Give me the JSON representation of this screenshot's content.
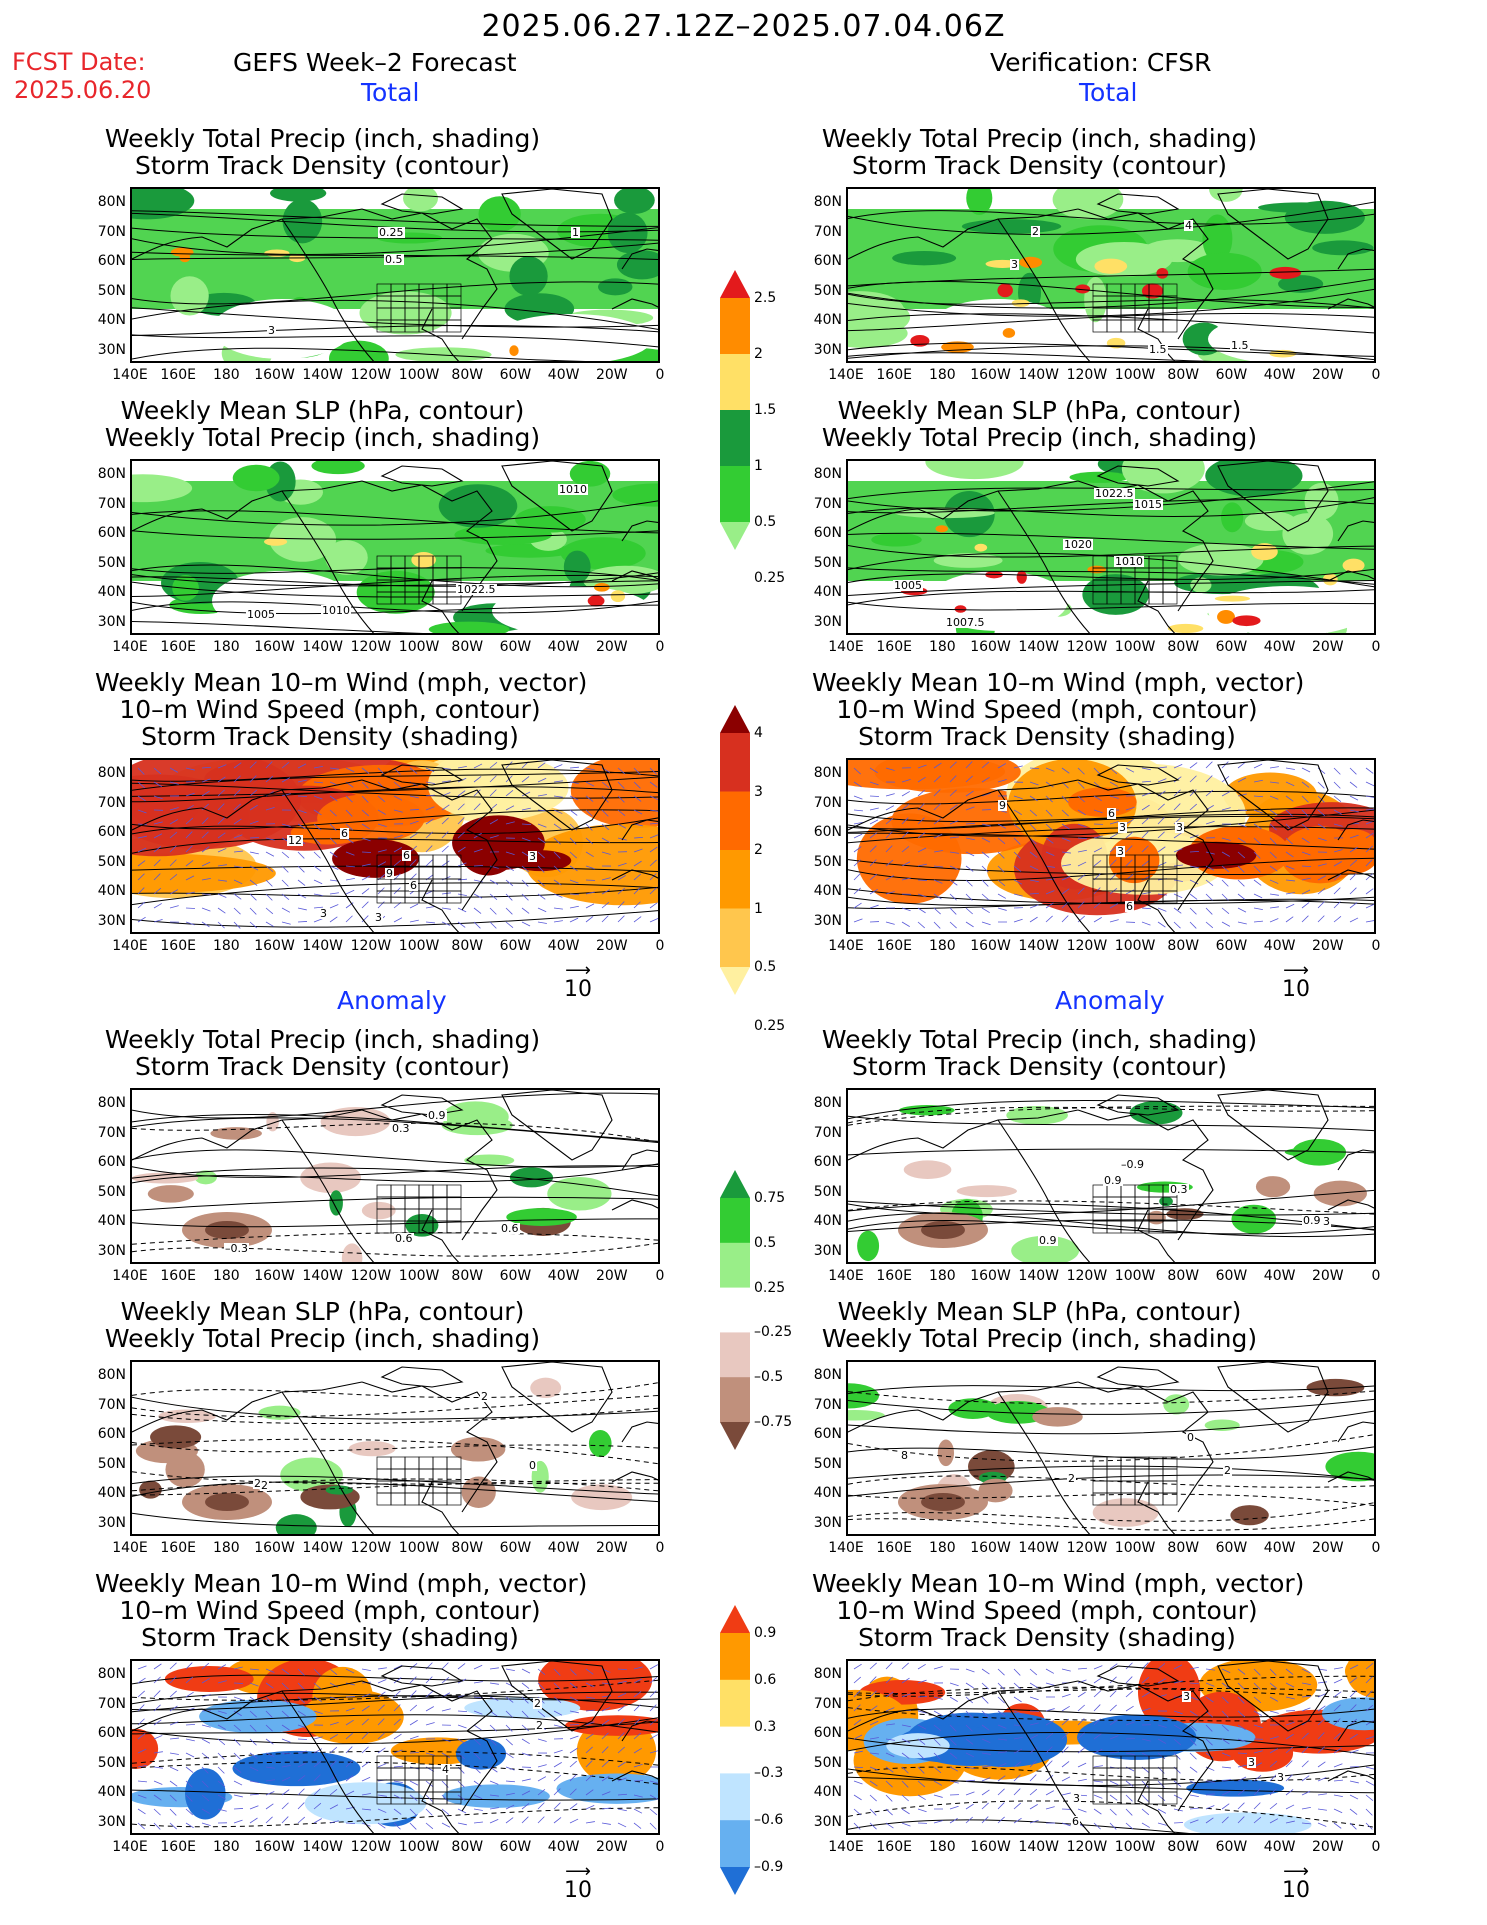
{
  "header": {
    "date_range": "2025.06.27.12Z–2025.07.04.06Z",
    "fcst_label": "FCST Date:",
    "fcst_date": "2025.06.20",
    "left_title": "GEFS Week–2 Forecast",
    "right_title": "Verification: CFSR",
    "section_total": "Total",
    "section_anomaly": "Anomaly"
  },
  "panel_titles": {
    "precip_track": "Weekly Total Precip (inch, shading)\nStorm Track Density (contour)",
    "slp_precip": "Weekly Mean SLP (hPa, contour)\nWeekly Total Precip (inch, shading)",
    "wind_track": "Weekly Mean 10–m Wind (mph, vector)\n10–m Wind Speed (mph, contour)\nStorm Track Density (shading)"
  },
  "axes": {
    "lat_labels": [
      "80N",
      "70N",
      "60N",
      "50N",
      "40N",
      "30N"
    ],
    "lon_labels": [
      "140E",
      "160E",
      "180",
      "160W",
      "140W",
      "120W",
      "100W",
      "80W",
      "60W",
      "40W",
      "20W",
      "0"
    ]
  },
  "vector_scale": {
    "value": "10",
    "arrow": "⟶"
  },
  "colorbars": {
    "precip_total": {
      "labels": [
        "2.5",
        "2",
        "1.5",
        "1",
        "0.5",
        "0.25"
      ],
      "colors": [
        "#e31a1c",
        "#ff8c00",
        "#ffe066",
        "#1a9a3c",
        "#33cc33",
        "#99ee88"
      ]
    },
    "track_total": {
      "labels": [
        "4",
        "3",
        "2",
        "1",
        "0.5",
        "0.25"
      ],
      "colors": [
        "#8b0000",
        "#d7301f",
        "#ff6a00",
        "#ff9900",
        "#ffc64d",
        "#fff0a0"
      ]
    },
    "precip_anom": {
      "labels": [
        "0.75",
        "0.5",
        "0.25",
        "–0.25",
        "–0.5",
        "–0.75"
      ],
      "colors": [
        "#1a9a3c",
        "#33cc33",
        "#99ee88",
        "#ffffff",
        "#e8c8c0",
        "#c0907c",
        "#7a4a3a"
      ]
    },
    "track_anom": {
      "labels": [
        "0.9",
        "0.6",
        "0.3",
        "–0.3",
        "–0.6",
        "–0.9"
      ],
      "colors": [
        "#f03c14",
        "#ff9900",
        "#ffe066",
        "#ffffff",
        "#bfe4ff",
        "#66b0f0",
        "#1f6fd6"
      ]
    },
    "precip_total_colors": [
      "#99ee88",
      "#33cc33",
      "#1a9a3c",
      "#ffe066",
      "#ff8c00",
      "#e31a1c"
    ]
  },
  "contour_labels": {
    "f_pt": [
      "0.5",
      "0.25",
      "3",
      "1"
    ],
    "f_sp": [
      "1005",
      "1010",
      "1010",
      "1022.5"
    ],
    "f_wt": [
      "3",
      "3",
      "3",
      "6",
      "6",
      "9",
      "12",
      "6"
    ],
    "v_pt": [
      "2",
      "4",
      "3",
      "1.5",
      "1.5"
    ],
    "v_sp": [
      "1005",
      "1007.5",
      "1020",
      "1010",
      "1015",
      "1022.5"
    ],
    "v_wt": [
      "3",
      "6",
      "3",
      "9",
      "3",
      "6"
    ],
    "fa_pt": [
      "0.3",
      "0.6",
      "0.9",
      "–0.3",
      "0.6"
    ],
    "fa_sp": [
      "2",
      "2",
      "2",
      "0"
    ],
    "fa_wt": [
      "2",
      "4",
      "2"
    ],
    "va_pt": [
      "0.9",
      "–0.3",
      "0.3",
      "0.9",
      "0.9",
      "–0.9"
    ],
    "va_sp": [
      "8",
      "2",
      "2",
      "0"
    ],
    "va_wt": [
      "3",
      "3",
      "3",
      "6",
      "3"
    ]
  }
}
